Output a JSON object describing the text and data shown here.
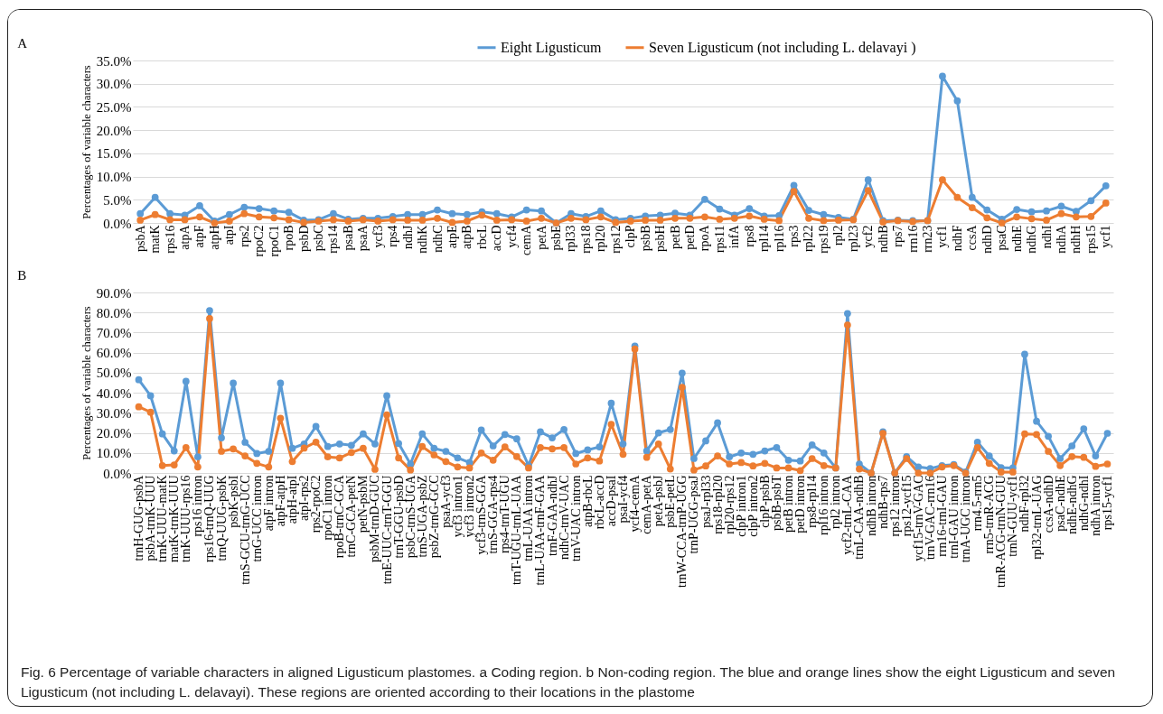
{
  "chart_data": [
    {
      "type": "line",
      "title": "A",
      "ylabel": "Percentages of variable characters",
      "categories": [
        "psbA",
        "matK",
        "rps16",
        "atpA",
        "atpF",
        "atpH",
        "atpI",
        "rps2",
        "rpoC2",
        "rpoC1",
        "rpoB",
        "psbD",
        "psbC",
        "rps14",
        "psaB",
        "psaA",
        "ycf3",
        "rps4",
        "ndhJ",
        "ndhK",
        "ndhC",
        "atpE",
        "atpB",
        "rbcL",
        "accD",
        "ycf4",
        "cemA",
        "petA",
        "psbE",
        "rpl33",
        "rps18",
        "rpl20",
        "rps12",
        "clpP",
        "psbB",
        "psbH",
        "petB",
        "petD",
        "rpoA",
        "rps11",
        "infA",
        "rps8",
        "rpl14",
        "rpl16",
        "rps3",
        "rpl22",
        "rps19",
        "rpl2",
        "rpl23",
        "ycf2",
        "ndhB",
        "rps7",
        "rrn16",
        "rrn23",
        "ycf1",
        "ndhF",
        "ccsA",
        "ndhD",
        "psaC",
        "ndhE",
        "ndhG",
        "ndhI",
        "ndhA",
        "ndhH",
        "rps15",
        "ycf1"
      ],
      "series": [
        {
          "name": "Eight Ligusticum",
          "color": "#5b9bd5",
          "values": [
            2.0,
            5.5,
            2.0,
            1.7,
            3.7,
            0.4,
            1.8,
            3.4,
            3.1,
            2.6,
            2.3,
            0.6,
            0.7,
            2.0,
            0.8,
            1.0,
            1.0,
            1.4,
            1.8,
            1.8,
            2.8,
            2.0,
            1.8,
            2.4,
            2.0,
            1.3,
            2.8,
            2.6,
            0.0,
            2.0,
            1.4,
            2.6,
            0.7,
            1.0,
            1.5,
            1.7,
            2.1,
            1.7,
            5.1,
            3.0,
            1.7,
            3.1,
            1.5,
            1.6,
            8.1,
            2.7,
            1.8,
            1.2,
            0.8,
            9.3,
            0.5,
            0.6,
            0.5,
            0.5,
            31.6,
            26.3,
            5.5,
            2.8,
            0.8,
            2.9,
            2.4,
            2.6,
            3.6,
            2.5,
            4.8,
            8.0
          ]
        },
        {
          "name": "Seven Ligusticum (not including L. delavayi )",
          "color": "#ed7d31",
          "values": [
            0.6,
            1.8,
            0.7,
            0.7,
            1.3,
            0.0,
            0.4,
            2.0,
            1.3,
            1.1,
            0.7,
            0.1,
            0.4,
            0.7,
            0.4,
            0.7,
            0.4,
            0.7,
            0.6,
            0.6,
            1.0,
            0.1,
            0.4,
            1.7,
            0.6,
            0.7,
            0.4,
            1.0,
            0.0,
            1.0,
            0.7,
            1.3,
            0.1,
            0.4,
            0.6,
            0.6,
            1.0,
            1.0,
            1.3,
            0.8,
            1.0,
            1.5,
            0.8,
            0.5,
            6.8,
            1.0,
            0.5,
            0.6,
            0.7,
            7.0,
            0.2,
            0.5,
            0.3,
            0.5,
            9.3,
            5.5,
            3.3,
            1.1,
            0.0,
            1.3,
            0.9,
            0.6,
            2.0,
            1.3,
            1.4,
            4.3
          ]
        }
      ],
      "ylim": [
        0,
        35
      ],
      "yticks": [
        {
          "value": 0,
          "label": "0.0%"
        },
        {
          "value": 5,
          "label": "5.0%"
        },
        {
          "value": 10,
          "label": "10.0%"
        },
        {
          "value": 15,
          "label": "15.0%"
        },
        {
          "value": 20,
          "label": "20.0%"
        },
        {
          "value": 25,
          "label": "25.0%"
        },
        {
          "value": 30,
          "label": "30.0%"
        },
        {
          "value": 35,
          "label": "35.0%"
        }
      ],
      "grid": "y",
      "legend": "top",
      "marker": "circle"
    },
    {
      "type": "line",
      "title": "B",
      "ylabel": "Percentages of variable characters",
      "categories": [
        "trnH-GUG-psbA",
        "psbA-trnK-UUU",
        "trnK-UUU-matK",
        "matK-trnK-UUU",
        "trnK-UUU-rps16",
        "rps16 intron",
        "rps16-trnQ-UUG",
        "trnQ-UUG-psbK",
        "psbK-psbI",
        "trnS-GCU-trnG-UCC",
        "trnG-UCC intron",
        "atpF intron",
        "atpF-atpH",
        "atpH-atpI",
        "atpI-rps2",
        "rps2-rpoC2",
        "rpoC1 intron",
        "rpoB-trnC-GCA",
        "trnC-GCA-petN",
        "petN-psbM",
        "psbM-trnD-GUC",
        "trnE-UUC-trnT-GGU",
        "trnT-GGU-psbD",
        "psbC-trnS-UGA",
        "trnS-UGA-psbZ",
        "psbZ-trnG-GCC",
        "psaA-ycf3",
        "ycf3 intron1",
        "ycf3 intron2",
        "ycf3-trnS-GGA",
        "trnS-GGA-rps4",
        "rps4-trnT-UGU",
        "trnT-UGU-trnL-UAA",
        "trnL-UAA intron",
        "trnL-UAA-trnF-GAA",
        "trnF-GAA-ndhJ",
        "ndhC-trnV-UAC",
        "trnV-UAC intron",
        "atpB-rbcL",
        "rbcL-accD",
        "accD-psaI",
        "psaI-ycf4",
        "ycf4-cemA",
        "cemA-petA",
        "petA-psbJ",
        "psbE-petL",
        "trnW-CCA-trnP-UGG",
        "trnP-UGG-psaJ",
        "psaJ-rpl33",
        "rps18-rpl20",
        "rpl20-rps12",
        "clpP intron1",
        "clpP intron2",
        "clpP-psbB",
        "psbB-psbT",
        "petB intron",
        "petD intron",
        "rps8-rpl14",
        "rpl16 intron",
        "rpl2 intron",
        "ycf2-trnL-CAA",
        "trnL-CAA-ndhB",
        "ndhB intron",
        "ndhB-rps7",
        "rps12 intron",
        "rps12-ycf15",
        "ycf15-trnV-GAC",
        "trnV-GAC-rrn16",
        "rrn16-trnI-GAU",
        "trnI-GAU intron",
        "trnA-UGC intron",
        "rrn4.5-rrn5",
        "rrn5-trnR-ACG",
        "trnR-ACG-trnN-GUU",
        "trnN-GUU-ycf1",
        "ndhF-rpl32",
        "rpl32-trnL-UAG",
        "ccsA-ndhD",
        "psaC-ndhE",
        "ndhE-ndhG",
        "ndhG-ndhI",
        "ndhA intron",
        "rps15-ycf1"
      ],
      "series": [
        {
          "color": "#5b9bd5",
          "values": [
            46.5,
            38.5,
            19.5,
            11,
            45.7,
            8,
            81,
            17.5,
            44.8,
            15.3,
            9.7,
            10.8,
            44.8,
            12.3,
            14.5,
            23.2,
            13.2,
            14.5,
            13.8,
            19.5,
            14.5,
            38.5,
            14.7,
            4.5,
            19.5,
            12.3,
            10.8,
            7.5,
            5.2,
            21.4,
            13.5,
            19.2,
            17,
            3.7,
            20.5,
            17.5,
            21.7,
            9.7,
            11.5,
            13,
            34.8,
            14.5,
            63.3,
            11,
            20,
            21.7,
            49.8,
            7.2,
            16,
            25,
            8,
            10,
            9.3,
            11,
            12.7,
            6.4,
            6,
            14,
            10,
            2.5,
            79.5,
            4.5,
            0,
            20.5,
            0,
            8.2,
            3,
            2.2,
            3.7,
            4.2,
            0.5,
            15.4,
            8.5,
            2.7,
            2.5,
            59.2,
            25.8,
            18.3,
            7.2,
            13.5,
            22,
            8.5,
            19.8
          ]
        },
        {
          "color": "#ed7d31",
          "values": [
            33,
            30.3,
            3.7,
            4,
            12.7,
            3,
            77,
            10.8,
            12,
            8.5,
            4.8,
            3,
            27.3,
            5.7,
            12.4,
            15.4,
            8,
            7.5,
            10.2,
            12.3,
            1.8,
            29,
            7.5,
            1.5,
            13.2,
            9,
            5.7,
            3,
            2.5,
            10,
            6.4,
            13,
            8.2,
            2.5,
            12.7,
            12,
            12.7,
            4.5,
            7.5,
            6,
            24.3,
            9.3,
            61.8,
            7.8,
            14.5,
            2,
            42.7,
            1.5,
            3.5,
            8.5,
            4.5,
            5.2,
            3.5,
            4.8,
            2.5,
            2.5,
            1.2,
            7.2,
            3.7,
            2.5,
            73.8,
            2,
            0,
            19.8,
            0,
            7.2,
            0,
            0,
            3,
            3.7,
            0,
            12.7,
            4.8,
            0.5,
            0.5,
            19.5,
            19.2,
            10.8,
            3.7,
            8.2,
            7.8,
            3.3,
            4.5
          ]
        }
      ],
      "ylim": [
        0,
        90
      ],
      "yticks": [
        {
          "value": 0,
          "label": "0.0%"
        },
        {
          "value": 10,
          "label": "10.0%"
        },
        {
          "value": 20,
          "label": "20.0%"
        },
        {
          "value": 30,
          "label": "30.0%"
        },
        {
          "value": 40,
          "label": "40.0%"
        },
        {
          "value": 50,
          "label": "50.0%"
        },
        {
          "value": 60,
          "label": "60.0%"
        },
        {
          "value": 70,
          "label": "70.0%"
        },
        {
          "value": 80,
          "label": "80.0%"
        },
        {
          "value": 90,
          "label": "90.0%"
        }
      ],
      "grid": "y",
      "marker": "circle",
      "annotations": [
        "Fig. 6 Percentage of variable characters in aligned Ligusticum plastomes. a Coding region. b Non-coding region. The blue and orange lines show the eight Ligusticum and seven Ligusticum (not including L. delavayi). These regions are oriented according to their locations in the plastome"
      ]
    }
  ]
}
